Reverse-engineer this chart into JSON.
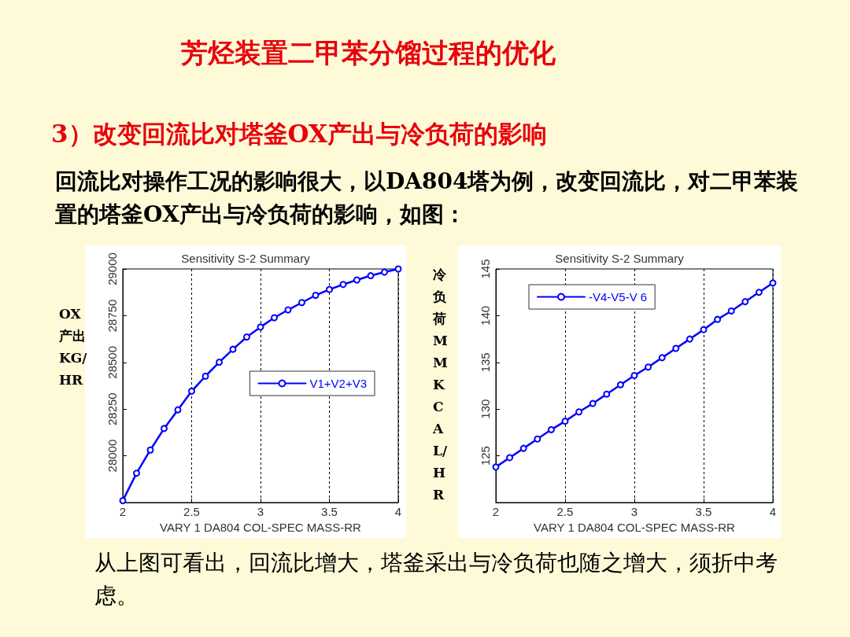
{
  "chart_data": [
    {
      "type": "line",
      "title": "Sensitivity S-2 Summary",
      "xlabel": "VARY 1 DA804 COL-SPEC MASS-RR",
      "ylabel": "OX产出KG/HR",
      "annotations": [
        "芳烃装置二甲苯分馏过程的优化",
        "3）改变回流比对塔釜OX产出与冷负荷的影响",
        "回流比对操作工况的影响很大，以DA804塔为例，改变回流比，对二甲苯装置的塔釜OX产出与冷负荷的影响，如图："
      ],
      "x": [
        2,
        2.1,
        2.2,
        2.3,
        2.4,
        2.5,
        2.6,
        2.7,
        2.8,
        2.9,
        3,
        3.1,
        3.2,
        3.3,
        3.4,
        3.5,
        3.6,
        3.7,
        3.8,
        3.9,
        4
      ],
      "series": [
        {
          "name": "V1+V2+V3",
          "color": "#0000ff",
          "values": [
            27760,
            27907,
            28031,
            28146,
            28246,
            28346,
            28426,
            28501,
            28570,
            28636,
            28689,
            28739,
            28781,
            28820,
            28859,
            28890,
            28917,
            28941,
            28964,
            28983,
            29000
          ]
        }
      ],
      "xlim": [
        2,
        4
      ],
      "xticks": [
        2,
        2.5,
        3,
        3.5,
        4
      ],
      "ylim": [
        27750,
        29000
      ],
      "yticks": [
        28000,
        28250,
        28500,
        28750,
        29000
      ],
      "grid": "x",
      "legend": "right",
      "marker": "circle",
      "line_style": "solid"
    },
    {
      "type": "line",
      "title": "Sensitivity S-2 Summary",
      "xlabel": "VARY 1 DA804 COL-SPEC MASS-RR",
      "ylabel": "冷负荷MMKCAL/HR",
      "annotations": [
        "从上图可看出，回流比增大，塔釜采出与冷负荷也随之增大，须折中考虑。"
      ],
      "x": [
        2,
        2.1,
        2.2,
        2.3,
        2.4,
        2.5,
        2.6,
        2.7,
        2.8,
        2.9,
        3,
        3.1,
        3.2,
        3.3,
        3.4,
        3.5,
        3.6,
        3.7,
        3.8,
        3.9,
        4
      ],
      "series": [
        {
          "name": "-V4-V5-V 6",
          "color": "#0000ff",
          "values": [
            123.8,
            124.8,
            125.8,
            126.8,
            127.8,
            128.7,
            129.7,
            130.6,
            131.6,
            132.6,
            133.6,
            134.5,
            135.5,
            136.5,
            137.5,
            138.5,
            139.6,
            140.5,
            141.5,
            142.5,
            143.5
          ]
        }
      ],
      "xlim": [
        2,
        4
      ],
      "xticks": [
        2,
        2.5,
        3,
        3.5,
        4
      ],
      "ylim": [
        120,
        145
      ],
      "yticks": [
        125,
        130,
        135,
        140,
        145
      ],
      "grid": "x",
      "legend": "top left",
      "marker": "circle",
      "line_style": "solid"
    }
  ]
}
